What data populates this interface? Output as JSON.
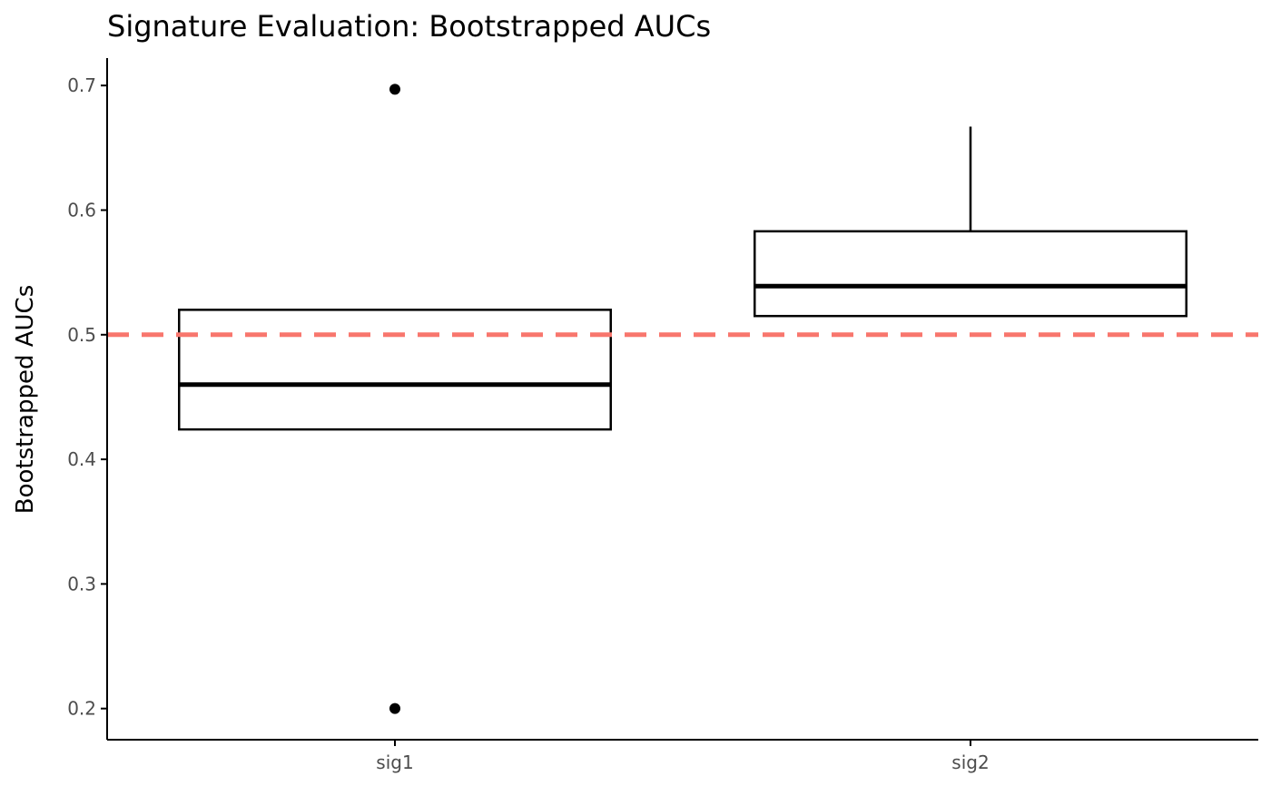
{
  "chart_data": {
    "type": "box",
    "title": "Signature Evaluation: Bootstrapped AUCs",
    "xlabel": "",
    "ylabel": "Bootstrapped AUCs",
    "categories": [
      "sig1",
      "sig2"
    ],
    "ylim": [
      0.175,
      0.722
    ],
    "yticks": [
      0.2,
      0.3,
      0.4,
      0.5,
      0.6,
      0.7
    ],
    "ytick_labels": [
      "0.2",
      "0.3",
      "0.4",
      "0.5",
      "0.6",
      "0.7"
    ],
    "boxes": [
      {
        "category": "sig1",
        "whisker_low": 0.424,
        "q1": 0.424,
        "median": 0.46,
        "q3": 0.52,
        "whisker_high": 0.52,
        "outliers": [
          0.697,
          0.2
        ]
      },
      {
        "category": "sig2",
        "whisker_low": 0.515,
        "q1": 0.515,
        "median": 0.539,
        "q3": 0.583,
        "whisker_high": 0.667,
        "outliers": []
      }
    ],
    "reference_line": {
      "value": 0.5,
      "style": "dashed",
      "color": "#F8766D"
    },
    "grid": false,
    "legend": "none",
    "colors": {
      "box_stroke": "#000000",
      "box_fill": "#ffffff",
      "axis": "#000000",
      "tick_label": "#4d4d4d"
    }
  }
}
